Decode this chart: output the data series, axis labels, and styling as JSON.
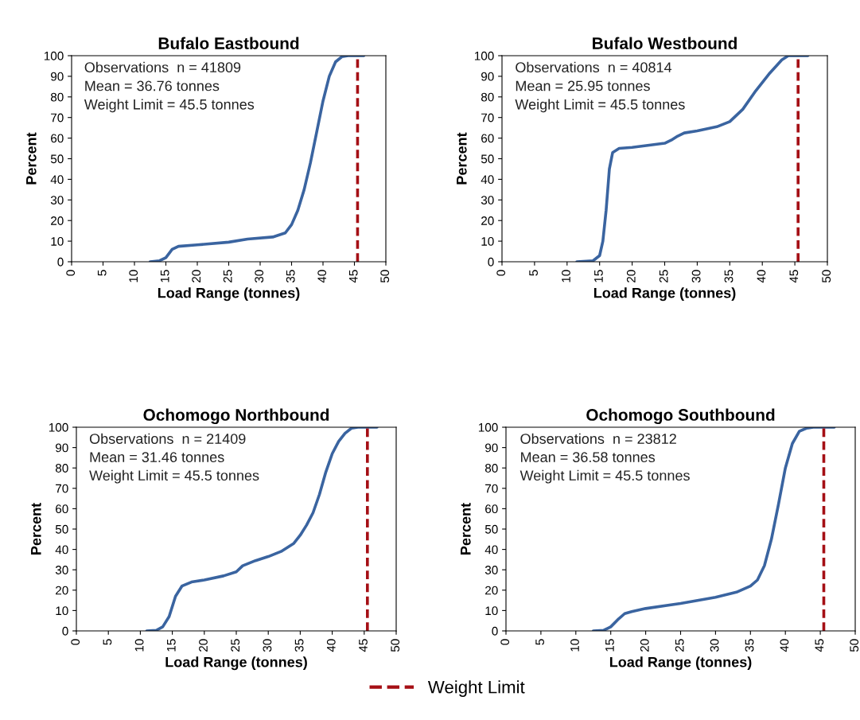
{
  "chart_data": [
    {
      "type": "line",
      "title": "Bufalo Eastbound",
      "xlabel": "Load Range (tonnes)",
      "ylabel": "Percent",
      "xlim": [
        0,
        50
      ],
      "xticks": [
        0,
        5,
        10,
        15,
        20,
        25,
        30,
        35,
        40,
        45,
        50
      ],
      "ylim": [
        0,
        100
      ],
      "yticks": [
        0,
        10,
        20,
        30,
        40,
        50,
        60,
        70,
        80,
        90,
        100
      ],
      "grid": false,
      "legend": "bottom",
      "annotations": [
        "Observations  n = 41809",
        "Mean = 36.76 tonnes",
        "Weight Limit = 45.5 tonnes"
      ],
      "ref_lines": [
        {
          "axis": "x",
          "value": 45.5,
          "label": "Weight Limit",
          "color": "#a50f15",
          "line_style": "dashed"
        }
      ],
      "series": [
        {
          "color": "#3a64a0",
          "x": [
            12.5,
            14,
            15,
            16,
            17,
            20,
            25,
            28,
            32,
            34,
            35,
            36,
            37,
            38,
            39,
            40,
            41,
            42,
            43,
            44,
            46.5
          ],
          "values": [
            0,
            0.5,
            2,
            6,
            7.5,
            8.2,
            9.5,
            11,
            12,
            14,
            18,
            25,
            35,
            48,
            63,
            78,
            90,
            97,
            99.5,
            100,
            100
          ]
        }
      ]
    },
    {
      "type": "line",
      "title": "Bufalo Westbound",
      "xlabel": "Load Range (tonnes)",
      "ylabel": "Percent",
      "xlim": [
        0,
        50
      ],
      "xticks": [
        0,
        5,
        10,
        15,
        20,
        25,
        30,
        35,
        40,
        45,
        50
      ],
      "ylim": [
        0,
        100
      ],
      "yticks": [
        0,
        10,
        20,
        30,
        40,
        50,
        60,
        70,
        80,
        90,
        100
      ],
      "grid": false,
      "legend": false,
      "annotations": [
        "Observations  n = 40814",
        "Mean = 25.95 tonnes",
        "Weight Limit = 45.5 tonnes"
      ],
      "ref_lines": [
        {
          "axis": "x",
          "value": 45.5,
          "color": "#a50f15",
          "line_style": "dashed"
        }
      ],
      "series": [
        {
          "color": "#3a64a0",
          "x": [
            11.5,
            14,
            15,
            15.5,
            16,
            16.5,
            17,
            18,
            20,
            25,
            26,
            27,
            28,
            30,
            33,
            35,
            37,
            39,
            41,
            43,
            44,
            47
          ],
          "values": [
            0,
            0.5,
            3,
            10,
            25,
            45,
            53,
            55,
            55.5,
            57.5,
            59,
            61,
            62.5,
            63.5,
            65.5,
            68,
            74,
            83,
            91,
            98,
            100,
            100
          ]
        }
      ]
    },
    {
      "type": "line",
      "title": "Ochomogo Northbound",
      "xlabel": "Load Range (tonnes)",
      "ylabel": "Percent",
      "xlim": [
        0,
        50
      ],
      "xticks": [
        0,
        5,
        10,
        15,
        20,
        25,
        30,
        35,
        40,
        45,
        50
      ],
      "ylim": [
        0,
        100
      ],
      "yticks": [
        0,
        10,
        20,
        30,
        40,
        50,
        60,
        70,
        80,
        90,
        100
      ],
      "grid": false,
      "legend": false,
      "annotations": [
        "Observations  n = 21409",
        "Mean = 31.46 tonnes",
        "Weight Limit = 45.5 tonnes"
      ],
      "ref_lines": [
        {
          "axis": "x",
          "value": 45.5,
          "color": "#a50f15",
          "line_style": "dashed"
        }
      ],
      "series": [
        {
          "color": "#3a64a0",
          "x": [
            11,
            12.5,
            13.5,
            14.5,
            15.5,
            16.5,
            18,
            20,
            23,
            25,
            26,
            28,
            30,
            32,
            34,
            35,
            36,
            37,
            38,
            39,
            40,
            41,
            42,
            43,
            44,
            47
          ],
          "values": [
            0,
            0.3,
            2,
            7,
            17,
            22,
            24,
            25,
            27,
            29,
            32,
            34.5,
            36.5,
            39,
            43,
            47,
            52,
            58,
            67,
            78,
            87,
            93,
            97,
            99.5,
            100,
            100
          ]
        }
      ]
    },
    {
      "type": "line",
      "title": "Ochomogo Southbound",
      "xlabel": "Load Range (tonnes)",
      "ylabel": "Percent",
      "xlim": [
        0,
        50
      ],
      "xticks": [
        0,
        5,
        10,
        15,
        20,
        25,
        30,
        35,
        40,
        45,
        50
      ],
      "ylim": [
        0,
        100
      ],
      "yticks": [
        0,
        10,
        20,
        30,
        40,
        50,
        60,
        70,
        80,
        90,
        100
      ],
      "grid": false,
      "legend": false,
      "annotations": [
        "Observations  n = 23812",
        "Mean = 36.58 tonnes",
        "Weight Limit = 45.5 tonnes"
      ],
      "ref_lines": [
        {
          "axis": "x",
          "value": 45.5,
          "color": "#a50f15",
          "line_style": "dashed"
        }
      ],
      "series": [
        {
          "color": "#3a64a0",
          "x": [
            12.5,
            14,
            15,
            16,
            17,
            18,
            20,
            25,
            30,
            33,
            35,
            36,
            37,
            38,
            39,
            40,
            41,
            42,
            43,
            44,
            47
          ],
          "values": [
            0,
            0.3,
            2,
            5.5,
            8.5,
            9.5,
            11,
            13.5,
            16.5,
            19,
            22,
            25,
            32,
            45,
            62,
            80,
            92,
            98,
            99.5,
            100,
            100
          ]
        }
      ]
    }
  ]
}
